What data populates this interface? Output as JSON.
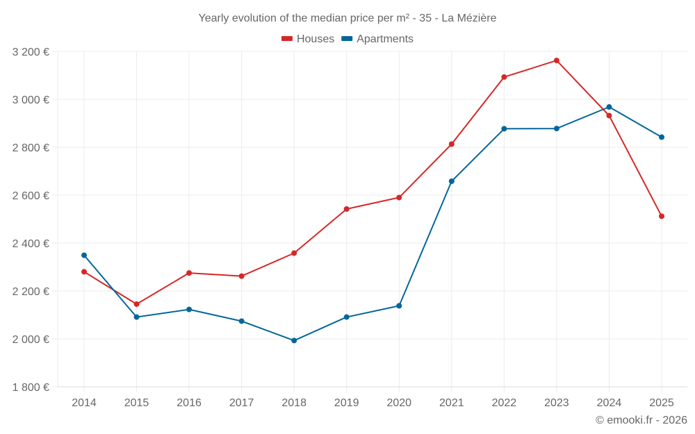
{
  "chart_data": {
    "type": "line",
    "title": "Yearly evolution of the median price per m² - 35 - La Mézière",
    "xlabel": "",
    "ylabel": "",
    "categories": [
      "2014",
      "2015",
      "2016",
      "2017",
      "2018",
      "2019",
      "2020",
      "2021",
      "2022",
      "2023",
      "2024",
      "2025"
    ],
    "series": [
      {
        "name": "Houses",
        "color": "#d62728",
        "values": [
          2280,
          2145,
          2275,
          2262,
          2358,
          2542,
          2590,
          2813,
          3093,
          3162,
          2932,
          2512
        ]
      },
      {
        "name": "Apartments",
        "color": "#02679a",
        "values": [
          2349,
          2091,
          2123,
          2074,
          1993,
          2091,
          2138,
          2658,
          2877,
          2878,
          2968,
          2842
        ]
      }
    ],
    "ylim": [
      1800,
      3200
    ],
    "yticks": [
      1800,
      2000,
      2200,
      2400,
      2600,
      2800,
      3000,
      3200
    ],
    "ytick_labels": [
      "1 800 €",
      "2 000 €",
      "2 200 €",
      "2 400 €",
      "2 600 €",
      "2 800 €",
      "3 000 €",
      "3 200 €"
    ],
    "grid": true,
    "legend_position": "top-center",
    "credit": "© emooki.fr - 2026"
  }
}
